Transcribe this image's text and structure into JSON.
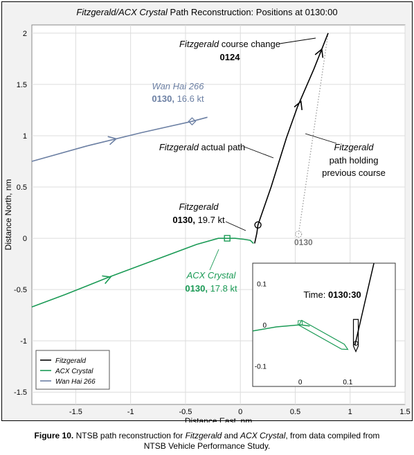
{
  "chart_data": {
    "type": "line",
    "title": {
      "italic": "Fitzgerald/ACX Crystal",
      "rest": " Path Reconstruction: Positions at 0130:00"
    },
    "xlabel": "Distance East, nm",
    "ylabel": "Distance North, nm",
    "xlim": [
      -1.9,
      1.5
    ],
    "ylim": [
      -1.62,
      2.08
    ],
    "x_ticks": [
      "-1.5",
      "-1",
      "-0.5",
      "0",
      "0.5",
      "1",
      "1.5"
    ],
    "x_tick_values": [
      -1.5,
      -1,
      -0.5,
      0,
      0.5,
      1,
      1.5
    ],
    "y_ticks": [
      "-1.5",
      "-1",
      "-0.5",
      "0",
      "0.5",
      "1",
      "1.5",
      "2"
    ],
    "y_tick_values": [
      -1.5,
      -1,
      -0.5,
      0,
      0.5,
      1,
      1.5,
      2
    ],
    "grid": true,
    "legend_position": "bottom-left",
    "series": [
      {
        "name": "Fitzgerald",
        "color": "#000000",
        "points": [
          [
            0.13,
            -0.05
          ],
          [
            0.15,
            0.05
          ],
          [
            0.16,
            0.13
          ],
          [
            0.28,
            0.5
          ],
          [
            0.42,
            0.98
          ],
          [
            0.52,
            1.28
          ],
          [
            0.67,
            1.65
          ],
          [
            0.8,
            2.0
          ]
        ]
      },
      {
        "name": "ACX Crystal",
        "color": "#1a9a55",
        "points": [
          [
            -1.9,
            -0.67
          ],
          [
            -1.6,
            -0.55
          ],
          [
            -1.2,
            -0.38
          ],
          [
            -0.8,
            -0.22
          ],
          [
            -0.4,
            -0.06
          ],
          [
            -0.2,
            0.0
          ],
          [
            -0.05,
            0.0
          ],
          [
            0.03,
            -0.01
          ],
          [
            0.09,
            -0.02
          ],
          [
            0.12,
            -0.05
          ]
        ]
      },
      {
        "name": "Wan Hai 266",
        "color": "#6b7fa3",
        "points": [
          [
            -1.9,
            0.75
          ],
          [
            -1.4,
            0.9
          ],
          [
            -0.9,
            1.03
          ],
          [
            -0.44,
            1.14
          ],
          [
            -0.3,
            1.18
          ]
        ]
      }
    ],
    "dotted_path": {
      "name": "Fitzgerald path holding previous course",
      "points": [
        [
          0.8,
          2.0
        ],
        [
          0.53,
          0.04
        ]
      ]
    },
    "markers": [
      {
        "series": "Fitzgerald",
        "shape": "circle",
        "x": 0.16,
        "y": 0.13
      },
      {
        "series": "ACX Crystal",
        "shape": "square",
        "x": -0.12,
        "y": 0.0
      },
      {
        "series": "Wan Hai 266",
        "shape": "diamond",
        "x": -0.44,
        "y": 1.14
      },
      {
        "series": "Fitzgerald",
        "shape": "dashed-circle",
        "x": 0.53,
        "y": 0.04
      }
    ],
    "annotations": {
      "wanhai": {
        "name": "Wan Hai 266",
        "time": "0130,",
        "speed": " 16.6 kt"
      },
      "course_change": {
        "name": "Fitzgerald",
        "rest": " course change",
        "time": "0124"
      },
      "actual_path": {
        "name": "Fitzgerald",
        "rest": " actual path"
      },
      "holding": {
        "name": "Fitzgerald",
        "line2": "path holding",
        "line3": "previous course"
      },
      "fitz_pos": {
        "name": "Fitzgerald",
        "time": "0130,",
        "speed": " 19.7 kt"
      },
      "acx_pos": {
        "name": "ACX Crystal",
        "time": "0130,",
        "speed": " 17.8 kt"
      },
      "ghost_time": "0130"
    },
    "legend": [
      "Fitzgerald",
      "ACX Crystal",
      "Wan Hai 266"
    ],
    "inset": {
      "label": "Time: ",
      "time": "0130:30",
      "x_ticks": [
        "0",
        "0.1"
      ],
      "x_tick_values": [
        0,
        0.1
      ],
      "y_ticks": [
        "0.1",
        "0",
        "-0.1"
      ],
      "y_tick_values": [
        0.1,
        0,
        -0.1
      ],
      "xlim": [
        -0.1,
        0.2
      ],
      "ylim": [
        -0.15,
        0.15
      ],
      "acx_path": [
        [
          -0.1,
          -0.015
        ],
        [
          -0.05,
          -0.005
        ],
        [
          0.0,
          0.0
        ],
        [
          0.02,
          -0.003
        ]
      ],
      "acx_hull": {
        "bow": [
          0.1,
          -0.06
        ],
        "stern": [
          0.0,
          0.005
        ]
      },
      "fitz_path": [
        [
          0.115,
          -0.05
        ],
        [
          0.125,
          0.0
        ],
        [
          0.145,
          0.1
        ],
        [
          0.155,
          0.15
        ]
      ],
      "fitz_hull": {
        "bow": [
          0.117,
          -0.065
        ],
        "stern": [
          0.117,
          0.013
        ]
      }
    }
  },
  "caption": {
    "label": "Figure 10.",
    "text1": " NTSB path reconstruction for ",
    "italic1": "Fitzgerald",
    "text2": " and ",
    "italic2": "ACX Crystal",
    "text3": ", from data compiled from",
    "line2": "NTSB Vehicle Performance Study."
  }
}
